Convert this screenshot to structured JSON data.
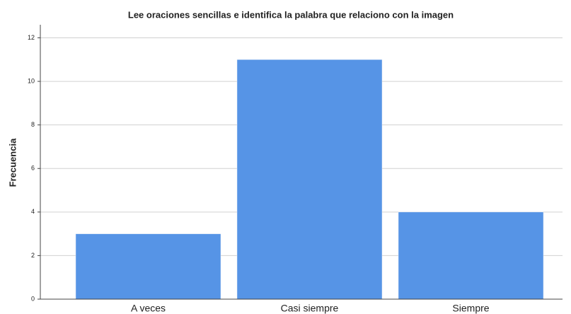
{
  "chart_data": {
    "type": "bar",
    "title": "Lee oraciones sencillas e identifica la palabra que relaciono con la imagen",
    "y_label": "Frecuencia",
    "categories": [
      "A veces",
      "Casi siempre",
      "Siempre"
    ],
    "values": [
      3,
      11,
      4
    ],
    "color": "#5694e6",
    "ylim": [
      0,
      12.6
    ],
    "yticks": [
      0,
      2,
      4,
      6,
      8,
      10,
      12
    ],
    "grid": true
  }
}
